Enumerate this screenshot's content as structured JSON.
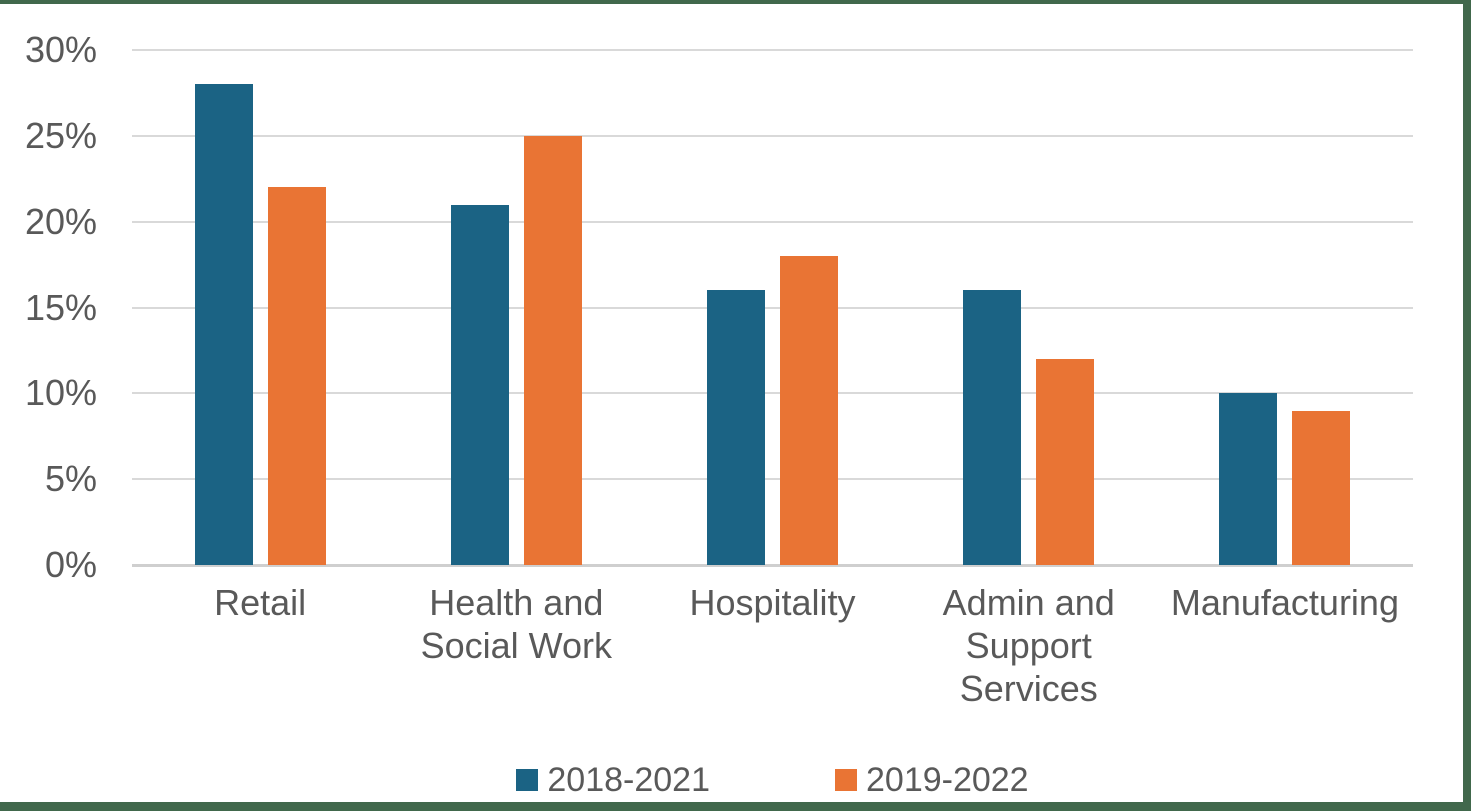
{
  "frame": {
    "border_color": "#41684C",
    "background_color": "#FFFFFF"
  },
  "chart_data": {
    "type": "bar",
    "title": "",
    "xlabel": "",
    "ylabel": "",
    "categories": [
      "Retail",
      "Health and\nSocial Work",
      "Hospitality",
      "Admin and\nSupport Services",
      "Manufacturing"
    ],
    "series": [
      {
        "name": "2018-2021",
        "color": "#1B6384",
        "values": [
          28,
          21,
          16,
          16,
          10
        ]
      },
      {
        "name": "2019-2022",
        "color": "#E97434",
        "values": [
          22,
          25,
          18,
          12,
          9
        ]
      }
    ],
    "ylim": [
      0,
      30
    ],
    "yticks": [
      0,
      5,
      10,
      15,
      20,
      25,
      30
    ],
    "ytick_labels": [
      "0%",
      "5%",
      "10%",
      "15%",
      "20%",
      "25%",
      "30%"
    ],
    "grid": true,
    "legend_position": "bottom",
    "colors": {
      "gridline": "#D9D9D9",
      "axis_line": "#CFCFCF",
      "text": "#595959"
    }
  }
}
